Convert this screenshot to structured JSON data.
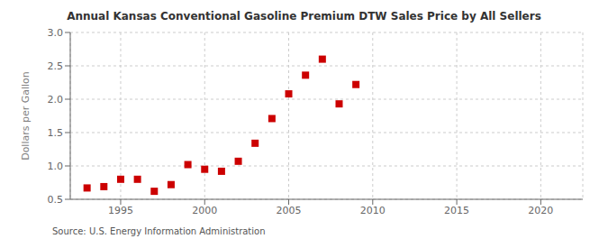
{
  "chart_data": {
    "type": "scatter",
    "title": "Annual Kansas Conventional Gasoline Premium DTW Sales Price by All Sellers",
    "y_label": "Dollars per Gallon",
    "annotations": [
      "Source: U.S. Energy Information Administration"
    ],
    "x": [
      1993,
      1994,
      1995,
      1996,
      1997,
      1998,
      1999,
      2000,
      2001,
      2002,
      2003,
      2004,
      2005,
      2006,
      2007,
      2008,
      2009,
      2010
    ],
    "values": [
      0.67,
      0.69,
      0.8,
      0.8,
      0.62,
      0.72,
      1.02,
      0.95,
      0.92,
      1.07,
      1.34,
      1.71,
      2.08,
      2.36,
      2.6,
      1.93,
      2.22,
      null
    ],
    "xlim": [
      1992.0,
      2022.5
    ],
    "xticks": [
      1995,
      2000,
      2005,
      2010,
      2015,
      2020
    ],
    "ylim": [
      0.5,
      3.0
    ],
    "yticks": [
      0.5,
      {
        "value": 1.0,
        "label": "1.0"
      },
      1.5,
      {
        "value": 2.0,
        "label": "2.0"
      },
      2.5,
      {
        "value": 3.0,
        "label": "3.0"
      }
    ],
    "color": "#cc0000",
    "marker": "square",
    "grid": true
  }
}
